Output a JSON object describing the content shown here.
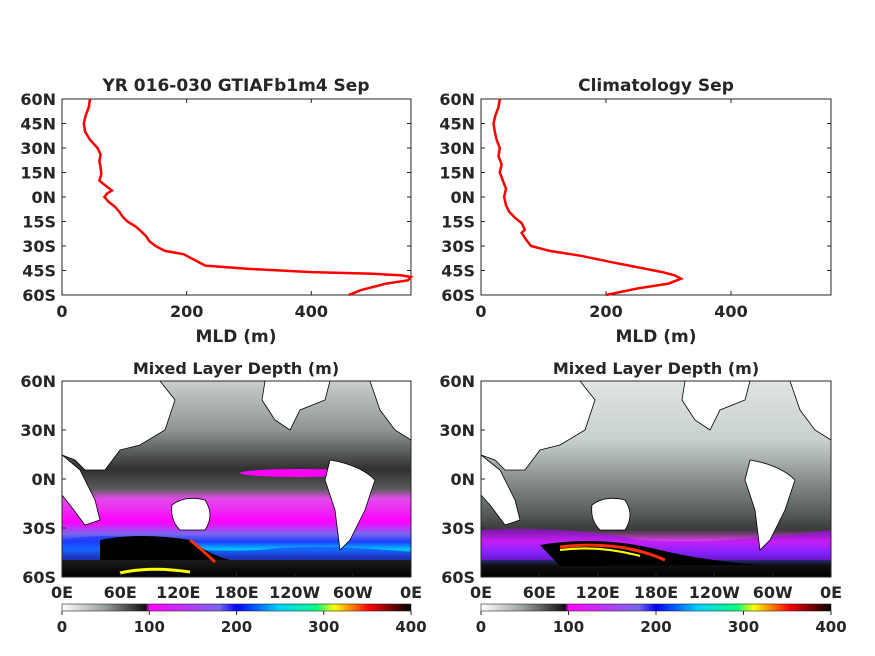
{
  "chart_data": [
    {
      "type": "line",
      "title": "YR 016-030 GTIAFb1m4 Sep",
      "xlabel": "MLD (m)",
      "ylabel": "",
      "xlim": [
        0,
        560
      ],
      "ylim": [
        -60,
        60
      ],
      "x_ticks": [
        {
          "value": 0,
          "label": "0"
        },
        {
          "value": 200,
          "label": "200"
        },
        {
          "value": 400,
          "label": "400"
        }
      ],
      "y_ticks": [
        {
          "value": 60,
          "label": "60N"
        },
        {
          "value": 45,
          "label": "45N"
        },
        {
          "value": 30,
          "label": "30N"
        },
        {
          "value": 15,
          "label": "15N"
        },
        {
          "value": 0,
          "label": "0N"
        },
        {
          "value": -15,
          "label": "15S"
        },
        {
          "value": -30,
          "label": "30S"
        },
        {
          "value": -45,
          "label": "45S"
        },
        {
          "value": -60,
          "label": "60S"
        }
      ],
      "series": [
        {
          "color": "#ff0000",
          "points": [
            [
              45,
              60
            ],
            [
              43,
              55
            ],
            [
              38,
              50
            ],
            [
              35,
              45
            ],
            [
              37,
              40
            ],
            [
              45,
              35
            ],
            [
              57,
              30
            ],
            [
              62,
              26
            ],
            [
              60,
              22
            ],
            [
              62,
              18
            ],
            [
              63,
              14
            ],
            [
              60,
              10
            ],
            [
              70,
              7
            ],
            [
              80,
              4
            ],
            [
              72,
              2
            ],
            [
              68,
              0
            ],
            [
              75,
              -3
            ],
            [
              85,
              -6
            ],
            [
              92,
              -9
            ],
            [
              97,
              -12
            ],
            [
              105,
              -15
            ],
            [
              118,
              -18
            ],
            [
              127,
              -21
            ],
            [
              135,
              -24
            ],
            [
              140,
              -27
            ],
            [
              150,
              -30
            ],
            [
              165,
              -33
            ],
            [
              195,
              -35
            ],
            [
              210,
              -38
            ],
            [
              230,
              -42
            ],
            [
              300,
              -44
            ],
            [
              400,
              -46
            ],
            [
              500,
              -47
            ],
            [
              545,
              -48
            ],
            [
              560,
              -49
            ],
            [
              555,
              -51
            ],
            [
              520,
              -53
            ],
            [
              480,
              -57
            ],
            [
              460,
              -60
            ]
          ]
        }
      ]
    },
    {
      "type": "line",
      "title": "Climatology Sep",
      "xlabel": "MLD (m)",
      "ylabel": "",
      "xlim": [
        0,
        560
      ],
      "ylim": [
        -60,
        60
      ],
      "x_ticks": [
        {
          "value": 0,
          "label": "0"
        },
        {
          "value": 200,
          "label": "200"
        },
        {
          "value": 400,
          "label": "400"
        }
      ],
      "y_ticks": [
        {
          "value": 60,
          "label": "60N"
        },
        {
          "value": 45,
          "label": "45N"
        },
        {
          "value": 30,
          "label": "30N"
        },
        {
          "value": 15,
          "label": "15N"
        },
        {
          "value": 0,
          "label": "0N"
        },
        {
          "value": -15,
          "label": "15S"
        },
        {
          "value": -30,
          "label": "30S"
        },
        {
          "value": -45,
          "label": "45S"
        },
        {
          "value": -60,
          "label": "60S"
        }
      ],
      "series": [
        {
          "color": "#ff0000",
          "points": [
            [
              30,
              60
            ],
            [
              28,
              55
            ],
            [
              23,
              50
            ],
            [
              20,
              45
            ],
            [
              22,
              40
            ],
            [
              25,
              35
            ],
            [
              30,
              30
            ],
            [
              28,
              25
            ],
            [
              33,
              20
            ],
            [
              30,
              15
            ],
            [
              35,
              10
            ],
            [
              40,
              5
            ],
            [
              37,
              0
            ],
            [
              40,
              -5
            ],
            [
              45,
              -9
            ],
            [
              55,
              -13
            ],
            [
              65,
              -16
            ],
            [
              70,
              -20
            ],
            [
              65,
              -22
            ],
            [
              72,
              -26
            ],
            [
              80,
              -30
            ],
            [
              110,
              -33
            ],
            [
              160,
              -36
            ],
            [
              210,
              -40
            ],
            [
              250,
              -43
            ],
            [
              290,
              -46
            ],
            [
              310,
              -48
            ],
            [
              320,
              -50
            ],
            [
              300,
              -53
            ],
            [
              250,
              -56
            ],
            [
              200,
              -60
            ]
          ]
        }
      ]
    },
    {
      "type": "heatmap",
      "title": "Mixed Layer Depth (m)",
      "x_ticks": [
        "0E",
        "60E",
        "120E",
        "180E",
        "120W",
        "60W",
        "0E"
      ],
      "y_ticks": [
        "60N",
        "30N",
        "0N",
        "30S",
        "60S"
      ],
      "colorbar": {
        "range": [
          0,
          400
        ],
        "ticks": [
          "0",
          "100",
          "200",
          "300",
          "400"
        ]
      }
    },
    {
      "type": "heatmap",
      "title": "Mixed Layer Depth (m)",
      "x_ticks": [
        "0E",
        "60E",
        "120E",
        "180E",
        "120W",
        "60W",
        "0E"
      ],
      "y_ticks": [
        "60N",
        "30N",
        "0N",
        "30S",
        "60S"
      ],
      "colorbar": {
        "range": [
          0,
          400
        ],
        "ticks": [
          "0",
          "100",
          "200",
          "300",
          "400"
        ]
      }
    }
  ],
  "colors": {
    "line": "#ff0000",
    "land": "#ffffff",
    "colormap": [
      "#ffffff",
      "#9aa0a0",
      "#101010",
      "#ff00ff",
      "#7b68ee",
      "#0000ff",
      "#00d0ff",
      "#00ff80",
      "#ffff00",
      "#ff0000",
      "#000000"
    ]
  }
}
